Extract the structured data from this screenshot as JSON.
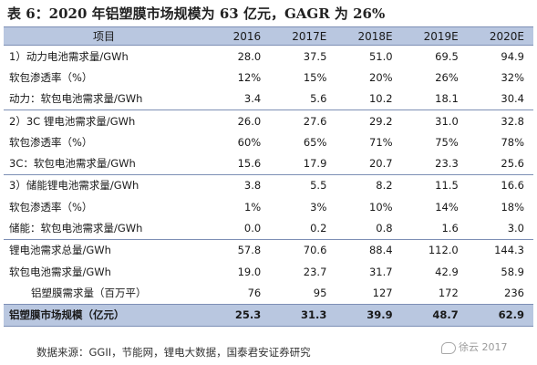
{
  "title": "表 6：2020 年铝塑膜市场规模为 63 亿元，GAGR 为 26%",
  "header": [
    "项目",
    "2016",
    "2017E",
    "2018E",
    "2019E",
    "2020E"
  ],
  "rows": [
    {
      "label": "1）动力电池需求量/GWh",
      "values": [
        "28.0",
        "37.5",
        "51.0",
        "69.5",
        "94.9"
      ]
    },
    {
      "label": "软包渗透率（%）",
      "values": [
        "12%",
        "15%",
        "20%",
        "26%",
        "32%"
      ]
    },
    {
      "label": "动力：软包电池需求量/GWh",
      "values": [
        "3.4",
        "5.6",
        "10.2",
        "18.1",
        "30.4"
      ]
    },
    {
      "label": "2）3C 锂电池需求量/GWh",
      "values": [
        "26.0",
        "27.6",
        "29.2",
        "31.0",
        "32.8"
      ]
    },
    {
      "label": "软包渗透率（%）",
      "values": [
        "60%",
        "65%",
        "71%",
        "75%",
        "78%"
      ]
    },
    {
      "label": "3C：软包电池需求量/GWh",
      "values": [
        "15.6",
        "17.9",
        "20.7",
        "23.3",
        "25.6"
      ]
    },
    {
      "label": "3）储能锂电池需求量/GWh",
      "values": [
        "3.8",
        "5.5",
        "8.2",
        "11.5",
        "16.6"
      ]
    },
    {
      "label": "软包渗透率（%）",
      "values": [
        "1%",
        "3%",
        "10%",
        "14%",
        "18%"
      ]
    },
    {
      "label": "储能：软包电池需求量/GWh",
      "values": [
        "0.0",
        "0.2",
        "0.8",
        "1.6",
        "3.0"
      ]
    },
    {
      "label": "锂电池需求总量/GWh",
      "values": [
        "57.8",
        "70.6",
        "88.4",
        "112.0",
        "144.3"
      ]
    },
    {
      "label": "软包电池需求量/GWh",
      "values": [
        "19.0",
        "23.7",
        "31.7",
        "42.9",
        "58.9"
      ]
    },
    {
      "label": "铝塑膜需求量（百万平）",
      "values": [
        "76",
        "95",
        "127",
        "172",
        "236"
      ]
    }
  ],
  "total": {
    "label": "铝塑膜市场规模（亿元）",
    "values": [
      "25.3",
      "31.3",
      "39.9",
      "48.7",
      "62.9"
    ]
  },
  "source": "数据来源：GGII，节能网，锂电大数据，国泰君安证券研究",
  "watermark": "徐云 2017"
}
